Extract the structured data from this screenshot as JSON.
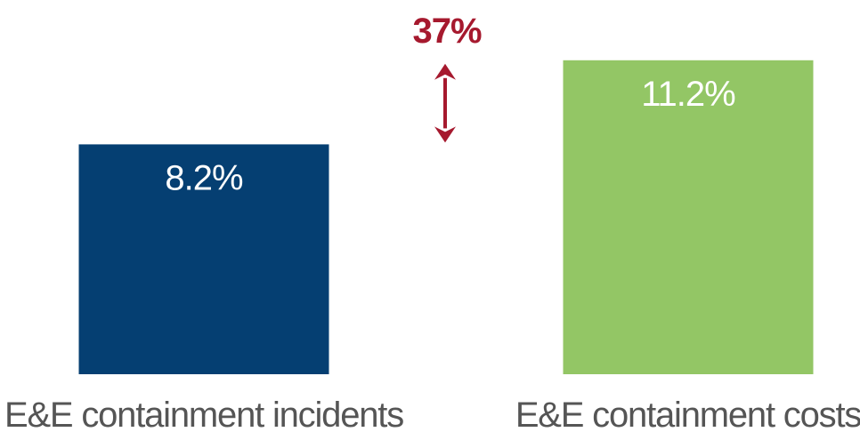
{
  "chart_data": {
    "type": "bar",
    "categories": [
      "E&E containment incidents",
      "E&E containment costs"
    ],
    "values": [
      8.2,
      11.2
    ],
    "value_labels": [
      "8.2%",
      "11.2%"
    ],
    "colors": [
      "#053f72",
      "#93c665"
    ],
    "ylim": [
      0,
      13.35
    ],
    "grid": false,
    "title": "",
    "xlabel": "",
    "ylabel": "",
    "annotation": {
      "text": "37%",
      "color": "#a6192e",
      "icon": "double-headed-vertical-arrow-icon"
    }
  }
}
